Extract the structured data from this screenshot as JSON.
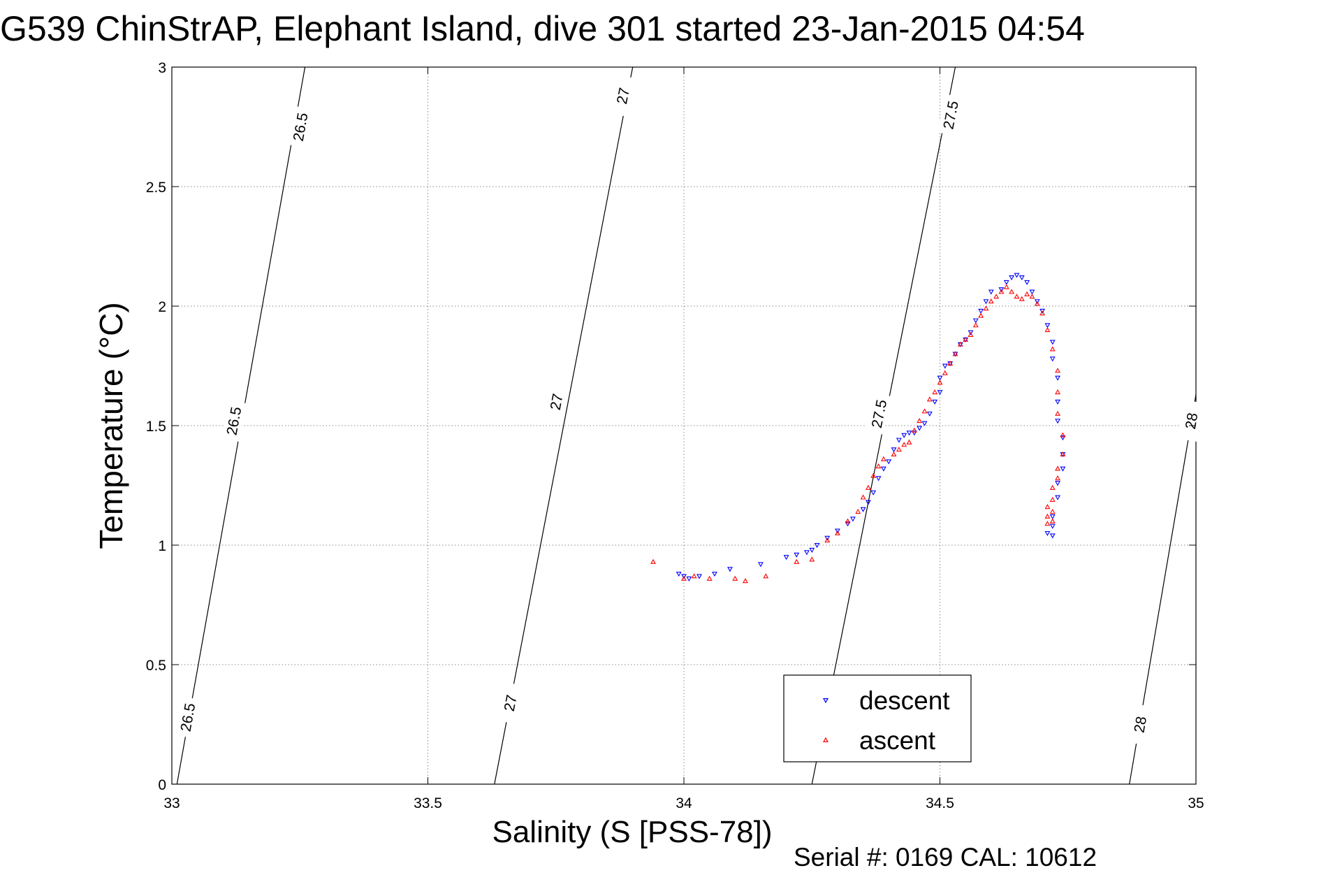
{
  "chart_data": {
    "type": "scatter",
    "title": "G539 ChinStrAP, Elephant Island, dive 301 started 23-Jan-2015 04:54",
    "xlabel": "Salinity (S [PSS-78])",
    "ylabel": "Temperature (°C)",
    "footer": "Serial #: 0169 CAL: 10612",
    "xlim": [
      33,
      35
    ],
    "ylim": [
      0,
      3
    ],
    "x_ticks": [
      33,
      33.5,
      34,
      34.5,
      35
    ],
    "x_tick_labels": [
      "33",
      "33.5",
      "34",
      "34.5",
      "35"
    ],
    "y_ticks": [
      0,
      0.5,
      1,
      1.5,
      2,
      2.5,
      3
    ],
    "y_tick_labels": [
      "0",
      "0.5",
      "1",
      "1.5",
      "2",
      "2.5",
      "3"
    ],
    "grid": true,
    "legend_position": "bottom-center",
    "density_contours": [
      {
        "label": "26.5",
        "points": [
          [
            33.01,
            0
          ],
          [
            33.26,
            3
          ]
        ],
        "label_positions": [
          [
            33.03,
            0.28
          ],
          [
            33.12,
            1.52
          ],
          [
            33.25,
            2.75
          ]
        ]
      },
      {
        "label": "27",
        "points": [
          [
            33.63,
            0
          ],
          [
            33.9,
            3
          ]
        ],
        "label_positions": [
          [
            33.66,
            0.34
          ],
          [
            33.75,
            1.6
          ],
          [
            33.88,
            2.88
          ]
        ]
      },
      {
        "label": "27.5",
        "points": [
          [
            34.25,
            0
          ],
          [
            34.53,
            3
          ]
        ],
        "label_positions": [
          [
            34.38,
            1.55
          ],
          [
            34.52,
            2.8
          ]
        ]
      },
      {
        "label": "28",
        "points": [
          [
            34.87,
            0
          ],
          [
            35.0,
            1.63
          ]
        ],
        "label_positions": [
          [
            34.89,
            0.25
          ],
          [
            34.99,
            1.52
          ]
        ]
      }
    ],
    "series": [
      {
        "name": "descent",
        "color": "#0000ff",
        "marker": "triangle-down",
        "points": [
          [
            33.99,
            0.88
          ],
          [
            34.0,
            0.87
          ],
          [
            34.01,
            0.86
          ],
          [
            34.03,
            0.87
          ],
          [
            34.06,
            0.88
          ],
          [
            34.09,
            0.9
          ],
          [
            34.15,
            0.92
          ],
          [
            34.2,
            0.95
          ],
          [
            34.22,
            0.96
          ],
          [
            34.24,
            0.97
          ],
          [
            34.25,
            0.98
          ],
          [
            34.26,
            1.0
          ],
          [
            34.28,
            1.03
          ],
          [
            34.3,
            1.06
          ],
          [
            34.32,
            1.09
          ],
          [
            34.33,
            1.11
          ],
          [
            34.35,
            1.15
          ],
          [
            34.36,
            1.18
          ],
          [
            34.37,
            1.22
          ],
          [
            34.38,
            1.28
          ],
          [
            34.39,
            1.32
          ],
          [
            34.4,
            1.35
          ],
          [
            34.41,
            1.4
          ],
          [
            34.42,
            1.44
          ],
          [
            34.43,
            1.46
          ],
          [
            34.44,
            1.47
          ],
          [
            34.45,
            1.47
          ],
          [
            34.46,
            1.49
          ],
          [
            34.47,
            1.51
          ],
          [
            34.48,
            1.55
          ],
          [
            34.49,
            1.6
          ],
          [
            34.5,
            1.64
          ],
          [
            34.5,
            1.7
          ],
          [
            34.51,
            1.75
          ],
          [
            34.52,
            1.76
          ],
          [
            34.53,
            1.8
          ],
          [
            34.54,
            1.84
          ],
          [
            34.55,
            1.86
          ],
          [
            34.56,
            1.89
          ],
          [
            34.57,
            1.94
          ],
          [
            34.58,
            1.98
          ],
          [
            34.59,
            2.02
          ],
          [
            34.6,
            2.06
          ],
          [
            34.62,
            2.07
          ],
          [
            34.63,
            2.1
          ],
          [
            34.64,
            2.12
          ],
          [
            34.65,
            2.13
          ],
          [
            34.66,
            2.12
          ],
          [
            34.67,
            2.1
          ],
          [
            34.68,
            2.06
          ],
          [
            34.69,
            2.02
          ],
          [
            34.7,
            1.98
          ],
          [
            34.71,
            1.92
          ],
          [
            34.72,
            1.85
          ],
          [
            34.72,
            1.78
          ],
          [
            34.73,
            1.7
          ],
          [
            34.73,
            1.6
          ],
          [
            34.73,
            1.52
          ],
          [
            34.74,
            1.45
          ],
          [
            34.74,
            1.38
          ],
          [
            34.74,
            1.32
          ],
          [
            34.73,
            1.26
          ],
          [
            34.73,
            1.2
          ],
          [
            34.72,
            1.12
          ],
          [
            34.72,
            1.08
          ],
          [
            34.71,
            1.05
          ],
          [
            34.72,
            1.04
          ]
        ]
      },
      {
        "name": "ascent",
        "color": "#ff0000",
        "marker": "triangle-up",
        "points": [
          [
            33.94,
            0.93
          ],
          [
            34.0,
            0.86
          ],
          [
            34.02,
            0.87
          ],
          [
            34.05,
            0.86
          ],
          [
            34.1,
            0.86
          ],
          [
            34.12,
            0.85
          ],
          [
            34.16,
            0.87
          ],
          [
            34.22,
            0.93
          ],
          [
            34.25,
            0.94
          ],
          [
            34.28,
            1.02
          ],
          [
            34.3,
            1.05
          ],
          [
            34.32,
            1.1
          ],
          [
            34.34,
            1.14
          ],
          [
            34.35,
            1.2
          ],
          [
            34.36,
            1.24
          ],
          [
            34.37,
            1.29
          ],
          [
            34.38,
            1.33
          ],
          [
            34.39,
            1.36
          ],
          [
            34.41,
            1.38
          ],
          [
            34.42,
            1.4
          ],
          [
            34.43,
            1.42
          ],
          [
            34.44,
            1.43
          ],
          [
            34.45,
            1.48
          ],
          [
            34.46,
            1.52
          ],
          [
            34.47,
            1.56
          ],
          [
            34.48,
            1.61
          ],
          [
            34.49,
            1.64
          ],
          [
            34.5,
            1.68
          ],
          [
            34.51,
            1.72
          ],
          [
            34.52,
            1.76
          ],
          [
            34.53,
            1.8
          ],
          [
            34.54,
            1.84
          ],
          [
            34.55,
            1.86
          ],
          [
            34.56,
            1.88
          ],
          [
            34.57,
            1.92
          ],
          [
            34.58,
            1.96
          ],
          [
            34.59,
            1.99
          ],
          [
            34.6,
            2.02
          ],
          [
            34.61,
            2.04
          ],
          [
            34.62,
            2.06
          ],
          [
            34.63,
            2.08
          ],
          [
            34.64,
            2.06
          ],
          [
            34.65,
            2.04
          ],
          [
            34.66,
            2.03
          ],
          [
            34.67,
            2.05
          ],
          [
            34.68,
            2.04
          ],
          [
            34.69,
            2.01
          ],
          [
            34.7,
            1.97
          ],
          [
            34.71,
            1.9
          ],
          [
            34.72,
            1.82
          ],
          [
            34.73,
            1.73
          ],
          [
            34.73,
            1.64
          ],
          [
            34.73,
            1.55
          ],
          [
            34.74,
            1.46
          ],
          [
            34.74,
            1.38
          ],
          [
            34.73,
            1.32
          ],
          [
            34.73,
            1.28
          ],
          [
            34.72,
            1.24
          ],
          [
            34.72,
            1.19
          ],
          [
            34.71,
            1.16
          ],
          [
            34.72,
            1.14
          ],
          [
            34.71,
            1.12
          ],
          [
            34.72,
            1.1
          ],
          [
            34.71,
            1.09
          ]
        ]
      }
    ]
  }
}
